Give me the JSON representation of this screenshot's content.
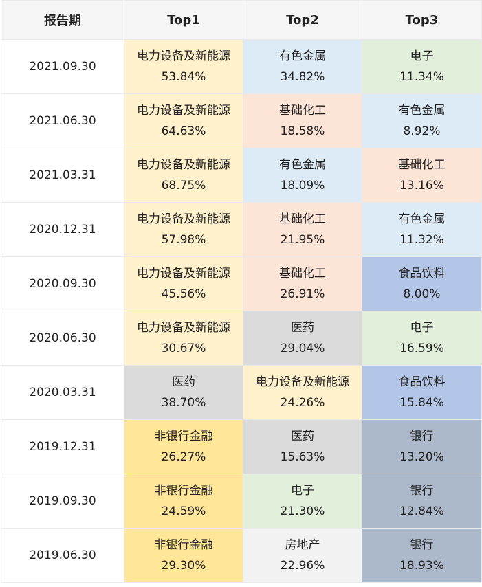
{
  "headers": [
    "报告期",
    "Top1",
    "Top2",
    "Top3"
  ],
  "colors": {
    "电力设备及新能源": "#fef1cc",
    "有色金属": "#ddebf7",
    "电子": "#e2efda",
    "基础化工": "#fce4d6",
    "食品饮料": "#b4c6e7",
    "医药": "#dbdbdb",
    "非银行金融": "#ffe699",
    "银行": "#acb9ca",
    "房地产": "#f2f2f2"
  },
  "rows": [
    {
      "date": "2021.09.30",
      "top": [
        {
          "name": "电力设备及新能源",
          "pct": "53.84%"
        },
        {
          "name": "有色金属",
          "pct": "34.82%"
        },
        {
          "name": "电子",
          "pct": "11.34%"
        }
      ]
    },
    {
      "date": "2021.06.30",
      "top": [
        {
          "name": "电力设备及新能源",
          "pct": "64.63%"
        },
        {
          "name": "基础化工",
          "pct": "18.58%"
        },
        {
          "name": "有色金属",
          "pct": "8.92%"
        }
      ]
    },
    {
      "date": "2021.03.31",
      "top": [
        {
          "name": "电力设备及新能源",
          "pct": "68.75%"
        },
        {
          "name": "有色金属",
          "pct": "18.09%"
        },
        {
          "name": "基础化工",
          "pct": "13.16%"
        }
      ]
    },
    {
      "date": "2020.12.31",
      "top": [
        {
          "name": "电力设备及新能源",
          "pct": "57.98%"
        },
        {
          "name": "基础化工",
          "pct": "21.95%"
        },
        {
          "name": "有色金属",
          "pct": "11.32%"
        }
      ]
    },
    {
      "date": "2020.09.30",
      "top": [
        {
          "name": "电力设备及新能源",
          "pct": "45.56%"
        },
        {
          "name": "基础化工",
          "pct": "26.91%"
        },
        {
          "name": "食品饮料",
          "pct": "8.00%"
        }
      ]
    },
    {
      "date": "2020.06.30",
      "top": [
        {
          "name": "电力设备及新能源",
          "pct": "30.67%"
        },
        {
          "name": "医药",
          "pct": "29.04%"
        },
        {
          "name": "电子",
          "pct": "16.59%"
        }
      ]
    },
    {
      "date": "2020.03.31",
      "top": [
        {
          "name": "医药",
          "pct": "38.70%"
        },
        {
          "name": "电力设备及新能源",
          "pct": "24.26%"
        },
        {
          "name": "食品饮料",
          "pct": "15.84%"
        }
      ]
    },
    {
      "date": "2019.12.31",
      "top": [
        {
          "name": "非银行金融",
          "pct": "26.27%"
        },
        {
          "name": "医药",
          "pct": "15.63%"
        },
        {
          "name": "银行",
          "pct": "13.20%"
        }
      ]
    },
    {
      "date": "2019.09.30",
      "top": [
        {
          "name": "非银行金融",
          "pct": "24.59%"
        },
        {
          "name": "电子",
          "pct": "21.30%"
        },
        {
          "name": "银行",
          "pct": "12.84%"
        }
      ]
    },
    {
      "date": "2019.06.30",
      "top": [
        {
          "name": "非银行金融",
          "pct": "29.30%"
        },
        {
          "name": "房地产",
          "pct": "22.96%"
        },
        {
          "name": "银行",
          "pct": "18.93%"
        }
      ]
    }
  ]
}
